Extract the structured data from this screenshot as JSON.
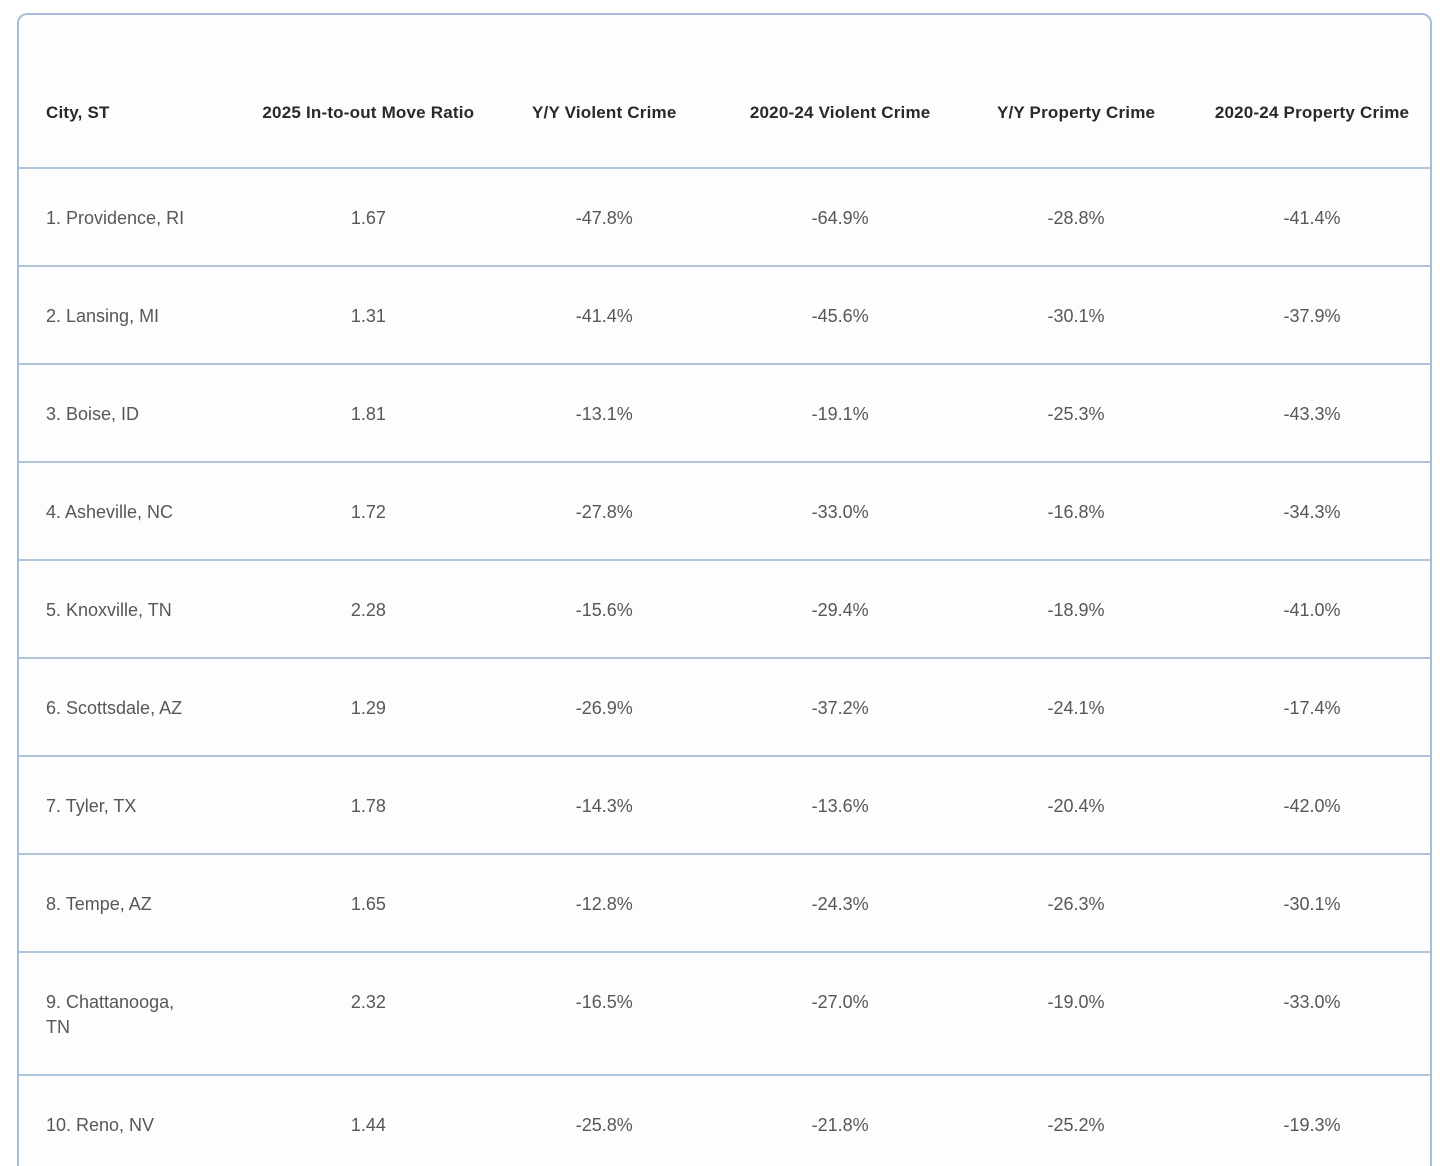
{
  "table": {
    "columns": [
      {
        "id": "city",
        "label": "City, ST",
        "align": "left"
      },
      {
        "id": "move_ratio",
        "label": "2025 In-to-out Move Ratio",
        "align": "center"
      },
      {
        "id": "yy_violent",
        "label": "Y/Y Violent Crime",
        "align": "center"
      },
      {
        "id": "violent_2020_24",
        "label": "2020-24 Violent Crime",
        "align": "center"
      },
      {
        "id": "yy_property",
        "label": "Y/Y Property Crime",
        "align": "center"
      },
      {
        "id": "property_2020_24",
        "label": "2020-24 Property Crime",
        "align": "center"
      }
    ],
    "rows": [
      {
        "city": "1. Providence, RI",
        "move_ratio": "1.67",
        "yy_violent": "-47.8%",
        "violent_2020_24": "-64.9%",
        "yy_property": "-28.8%",
        "property_2020_24": "-41.4%"
      },
      {
        "city": "2. Lansing, MI",
        "move_ratio": "1.31",
        "yy_violent": "-41.4%",
        "violent_2020_24": "-45.6%",
        "yy_property": "-30.1%",
        "property_2020_24": "-37.9%"
      },
      {
        "city": "3. Boise, ID",
        "move_ratio": "1.81",
        "yy_violent": "-13.1%",
        "violent_2020_24": "-19.1%",
        "yy_property": "-25.3%",
        "property_2020_24": "-43.3%"
      },
      {
        "city": "4. Asheville, NC",
        "move_ratio": "1.72",
        "yy_violent": "-27.8%",
        "violent_2020_24": "-33.0%",
        "yy_property": "-16.8%",
        "property_2020_24": "-34.3%"
      },
      {
        "city": "5. Knoxville, TN",
        "move_ratio": "2.28",
        "yy_violent": "-15.6%",
        "violent_2020_24": "-29.4%",
        "yy_property": "-18.9%",
        "property_2020_24": "-41.0%"
      },
      {
        "city": "6. Scottsdale, AZ",
        "move_ratio": "1.29",
        "yy_violent": "-26.9%",
        "violent_2020_24": "-37.2%",
        "yy_property": "-24.1%",
        "property_2020_24": "-17.4%"
      },
      {
        "city": "7. Tyler, TX",
        "move_ratio": "1.78",
        "yy_violent": "-14.3%",
        "violent_2020_24": "-13.6%",
        "yy_property": "-20.4%",
        "property_2020_24": "-42.0%"
      },
      {
        "city": "8. Tempe, AZ",
        "move_ratio": "1.65",
        "yy_violent": "-12.8%",
        "violent_2020_24": "-24.3%",
        "yy_property": "-26.3%",
        "property_2020_24": "-30.1%"
      },
      {
        "city": "9. Chattanooga,\nTN",
        "move_ratio": "2.32",
        "yy_violent": "-16.5%",
        "violent_2020_24": "-27.0%",
        "yy_property": "-19.0%",
        "property_2020_24": "-33.0%"
      },
      {
        "city": "10. Reno, NV",
        "move_ratio": "1.44",
        "yy_violent": "-25.8%",
        "violent_2020_24": "-21.8%",
        "yy_property": "-25.2%",
        "property_2020_24": "-19.3%"
      }
    ]
  },
  "colors": {
    "border": "#a6bed7",
    "header_text": "#28292d",
    "cell_text": "#55575b",
    "table_background": "#fdfdfe"
  }
}
